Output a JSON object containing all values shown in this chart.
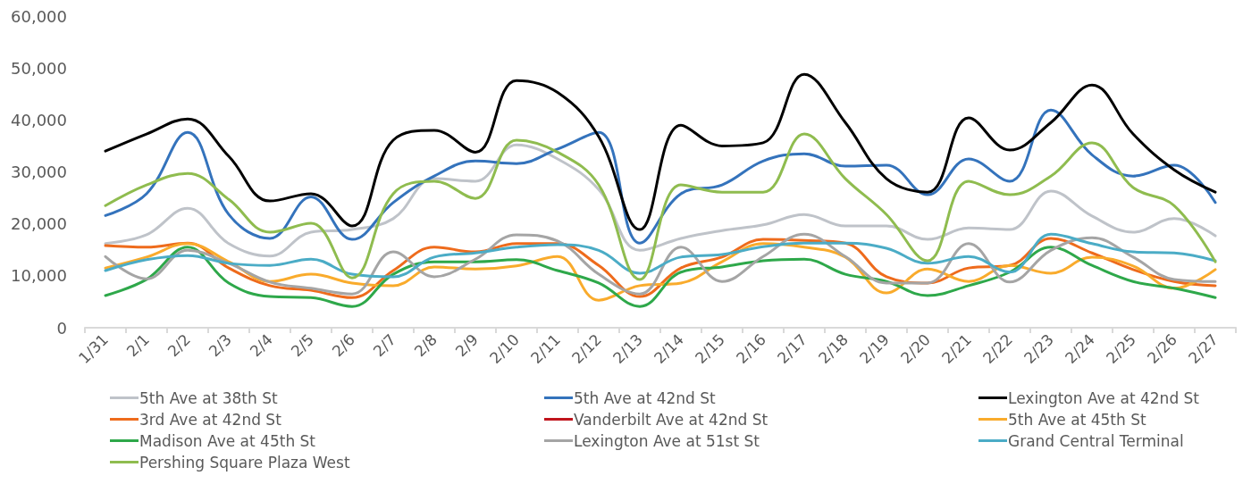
{
  "chart_data": {
    "type": "line",
    "categories": [
      "1/31",
      "2/1",
      "2/2",
      "2/3",
      "2/4",
      "2/5",
      "2/6",
      "2/7",
      "2/8",
      "2/9",
      "2/10",
      "2/11",
      "2/12",
      "2/13",
      "2/14",
      "2/15",
      "2/16",
      "2/17",
      "2/18",
      "2/19",
      "2/20",
      "2/21",
      "2/22",
      "2/23",
      "2/24",
      "2/25",
      "2/26",
      "2/27"
    ],
    "series": [
      {
        "name": "5th Ave at 38th St",
        "color": "#bfc3c9",
        "values": [
          16200,
          17900,
          23000,
          16200,
          13800,
          18400,
          18900,
          21000,
          28700,
          28200,
          35200,
          32500,
          26600,
          14900,
          17200,
          18700,
          19800,
          21800,
          19600,
          19600,
          17000,
          19200,
          18900,
          26300,
          21500,
          18400,
          21000,
          17700
        ]
      },
      {
        "name": "5th Ave at 42nd St",
        "color": "#3473bc",
        "values": [
          21600,
          25800,
          37600,
          21800,
          17200,
          25200,
          17000,
          24100,
          29200,
          32100,
          31600,
          34400,
          37600,
          16300,
          25800,
          27500,
          32100,
          33500,
          31100,
          31300,
          25600,
          32500,
          28200,
          41900,
          33300,
          29200,
          31300,
          24100
        ]
      },
      {
        "name": "Lexington Ave at 42nd St",
        "color": "#000000",
        "values": [
          34000,
          37300,
          40200,
          33000,
          24400,
          25800,
          19600,
          36100,
          38000,
          33800,
          47600,
          45300,
          36800,
          18900,
          39000,
          35000,
          35600,
          48800,
          39500,
          28700,
          26100,
          40400,
          34200,
          39500,
          46700,
          37300,
          30400,
          26100
        ]
      },
      {
        "name": "3rd Ave at 42nd St",
        "color": "#ee6b1c",
        "values": [
          15800,
          15500,
          16300,
          11500,
          8100,
          7200,
          5800,
          11000,
          15500,
          14600,
          16200,
          16200,
          12000,
          6000,
          11500,
          13600,
          17000,
          16800,
          16300,
          9800,
          8600,
          11500,
          12000,
          17200,
          14400,
          11200,
          8900,
          8100
        ]
      },
      {
        "name": "Vanderbilt Ave at 42nd St",
        "color": "#c0141c",
        "values": [
          null,
          null,
          null,
          null,
          null,
          null,
          null,
          null,
          null,
          null,
          null,
          null,
          null,
          null,
          null,
          null,
          null,
          null,
          null,
          null,
          null,
          null,
          null,
          null,
          null,
          null,
          null,
          null
        ]
      },
      {
        "name": "5th Ave at 45th St",
        "color": "#f9ab2c",
        "values": [
          11500,
          13600,
          16200,
          12700,
          8900,
          10300,
          8600,
          8100,
          11700,
          11300,
          11900,
          13700,
          5300,
          8100,
          8600,
          12700,
          16200,
          15500,
          13600,
          6700,
          11300,
          8900,
          12000,
          10500,
          13600,
          11900,
          7600,
          11200
        ]
      },
      {
        "name": "Madison Ave at 45th St",
        "color": "#2ea84a",
        "values": [
          6200,
          9300,
          15500,
          8600,
          6000,
          5800,
          4100,
          10300,
          12700,
          12700,
          13100,
          11000,
          8600,
          4100,
          10700,
          11700,
          12900,
          13200,
          10300,
          8900,
          6200,
          8100,
          10700,
          15500,
          12000,
          8900,
          7600,
          5800
        ]
      },
      {
        "name": "Lexington Ave at 51st St",
        "color": "#a5a5a5",
        "values": [
          13700,
          9400,
          14900,
          12400,
          8800,
          7600,
          6500,
          14600,
          9800,
          13200,
          17900,
          16700,
          10300,
          6500,
          15500,
          8900,
          13700,
          18000,
          13700,
          8600,
          8600,
          16200,
          8800,
          14900,
          17300,
          13600,
          9300,
          8900
        ]
      },
      {
        "name": "Grand Central Terminal",
        "color": "#4bacc6",
        "values": [
          11000,
          13100,
          13900,
          12400,
          12000,
          13200,
          10300,
          9800,
          13600,
          14400,
          15500,
          16000,
          14900,
          10500,
          13600,
          14100,
          15600,
          16300,
          16300,
          15300,
          12400,
          13700,
          10700,
          18000,
          16200,
          14600,
          14400,
          12900
        ]
      },
      {
        "name": "Pershing Square Plaza West",
        "color": "#8fbc4f",
        "values": [
          23500,
          27500,
          29700,
          24700,
          18400,
          20100,
          9600,
          25800,
          28200,
          24900,
          36100,
          33800,
          27500,
          9300,
          27500,
          26100,
          26100,
          37300,
          28700,
          21800,
          12900,
          28200,
          25600,
          29200,
          35600,
          27000,
          23500,
          12700
        ]
      }
    ],
    "ylim": [
      0,
      60000
    ],
    "yticks": [
      0,
      {
        "value": 10000,
        "label": "10,000"
      },
      {
        "value": 20000,
        "label": "20,000"
      },
      {
        "value": 30000,
        "label": "30,000"
      },
      {
        "value": 40000,
        "label": "40,000"
      },
      {
        "value": 50000,
        "label": "50,000"
      },
      {
        "value": 60000,
        "label": "60,000"
      }
    ],
    "grid": false,
    "legend": "bottom",
    "marker": "none",
    "line_style": "solid"
  }
}
